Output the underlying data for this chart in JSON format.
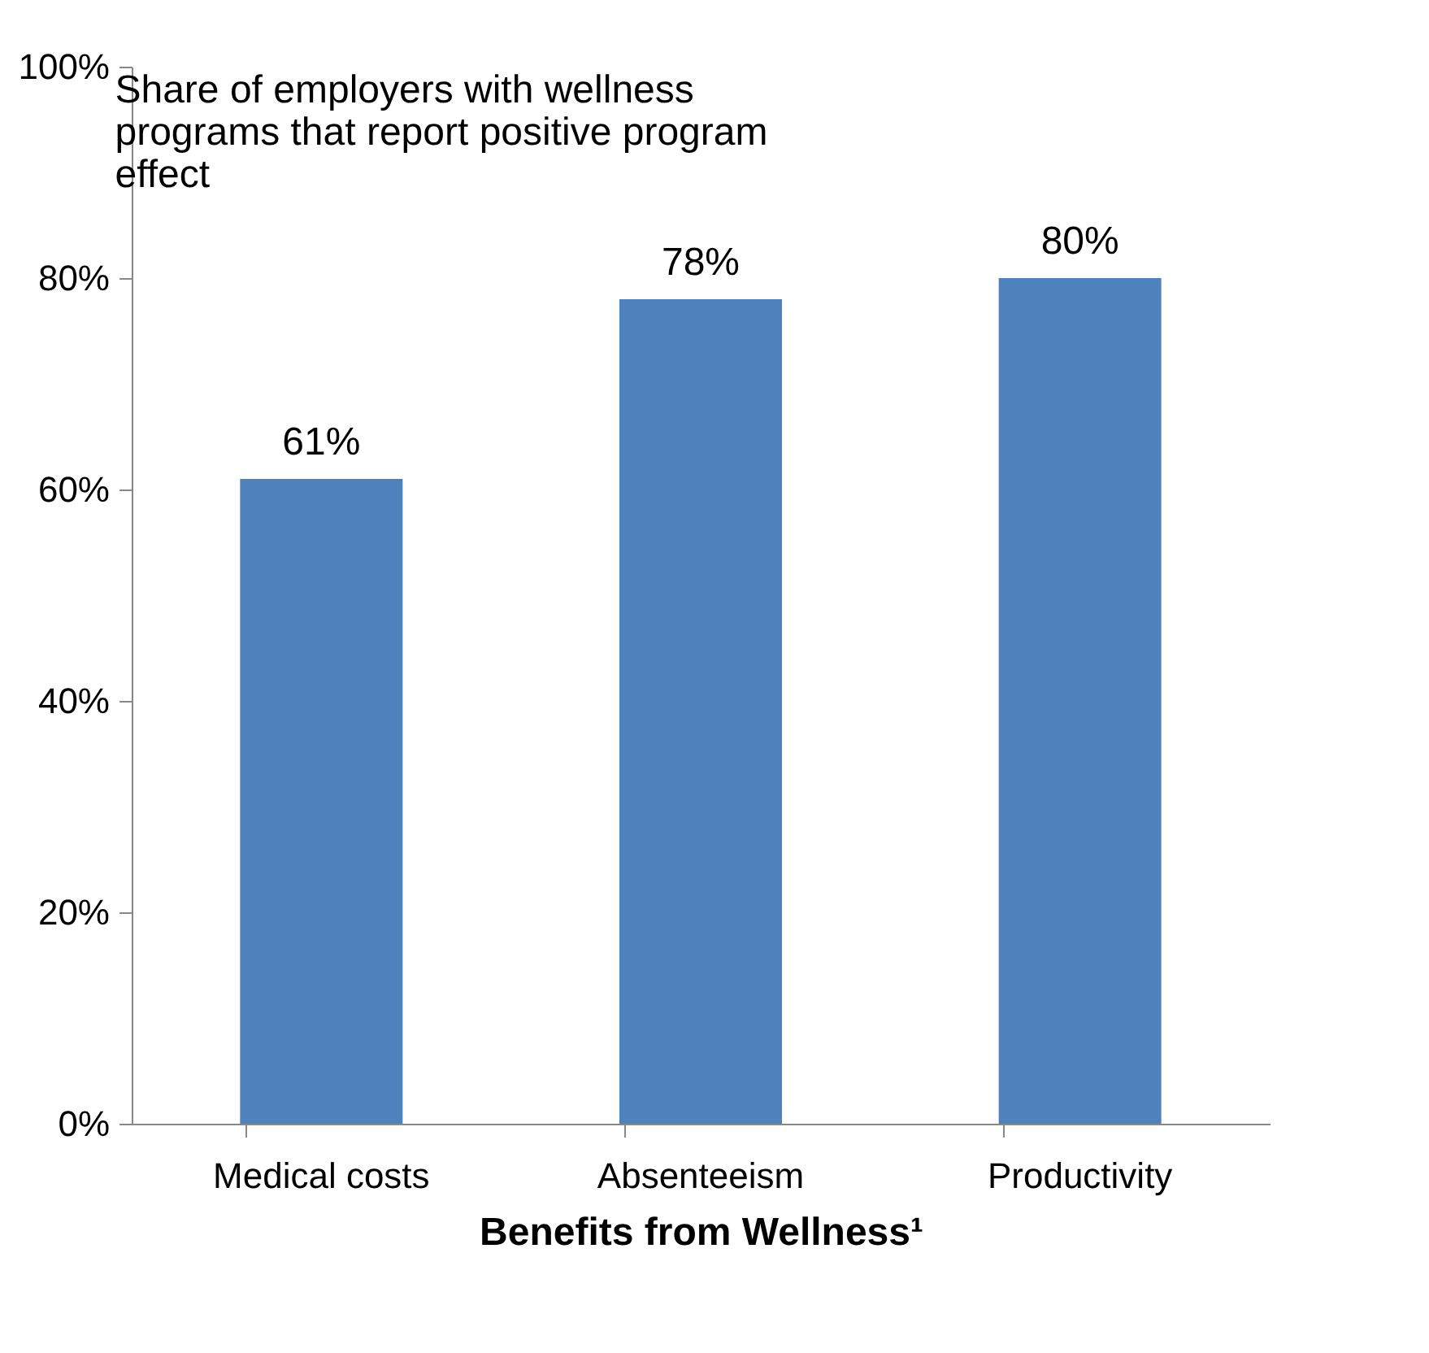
{
  "chart_data": {
    "type": "bar",
    "title": "Share of employers with wellness programs that report positive program effect",
    "xlabel": "Benefits from Wellness¹",
    "categories": [
      "Medical costs",
      "Absenteeism",
      "Productivity"
    ],
    "values": [
      61,
      78,
      80
    ],
    "color": "#4f81bd",
    "value_labels": [
      "61%",
      "78%",
      "80%"
    ],
    "ylim": [
      0,
      100
    ],
    "yticks": [
      {
        "value": 0,
        "label": "0%"
      },
      {
        "value": 20,
        "label": "20%"
      },
      {
        "value": 40,
        "label": "40%"
      },
      {
        "value": 60,
        "label": "60%"
      },
      {
        "value": 80,
        "label": "80%"
      },
      {
        "value": 100,
        "label": "100%"
      }
    ],
    "grid": false
  }
}
